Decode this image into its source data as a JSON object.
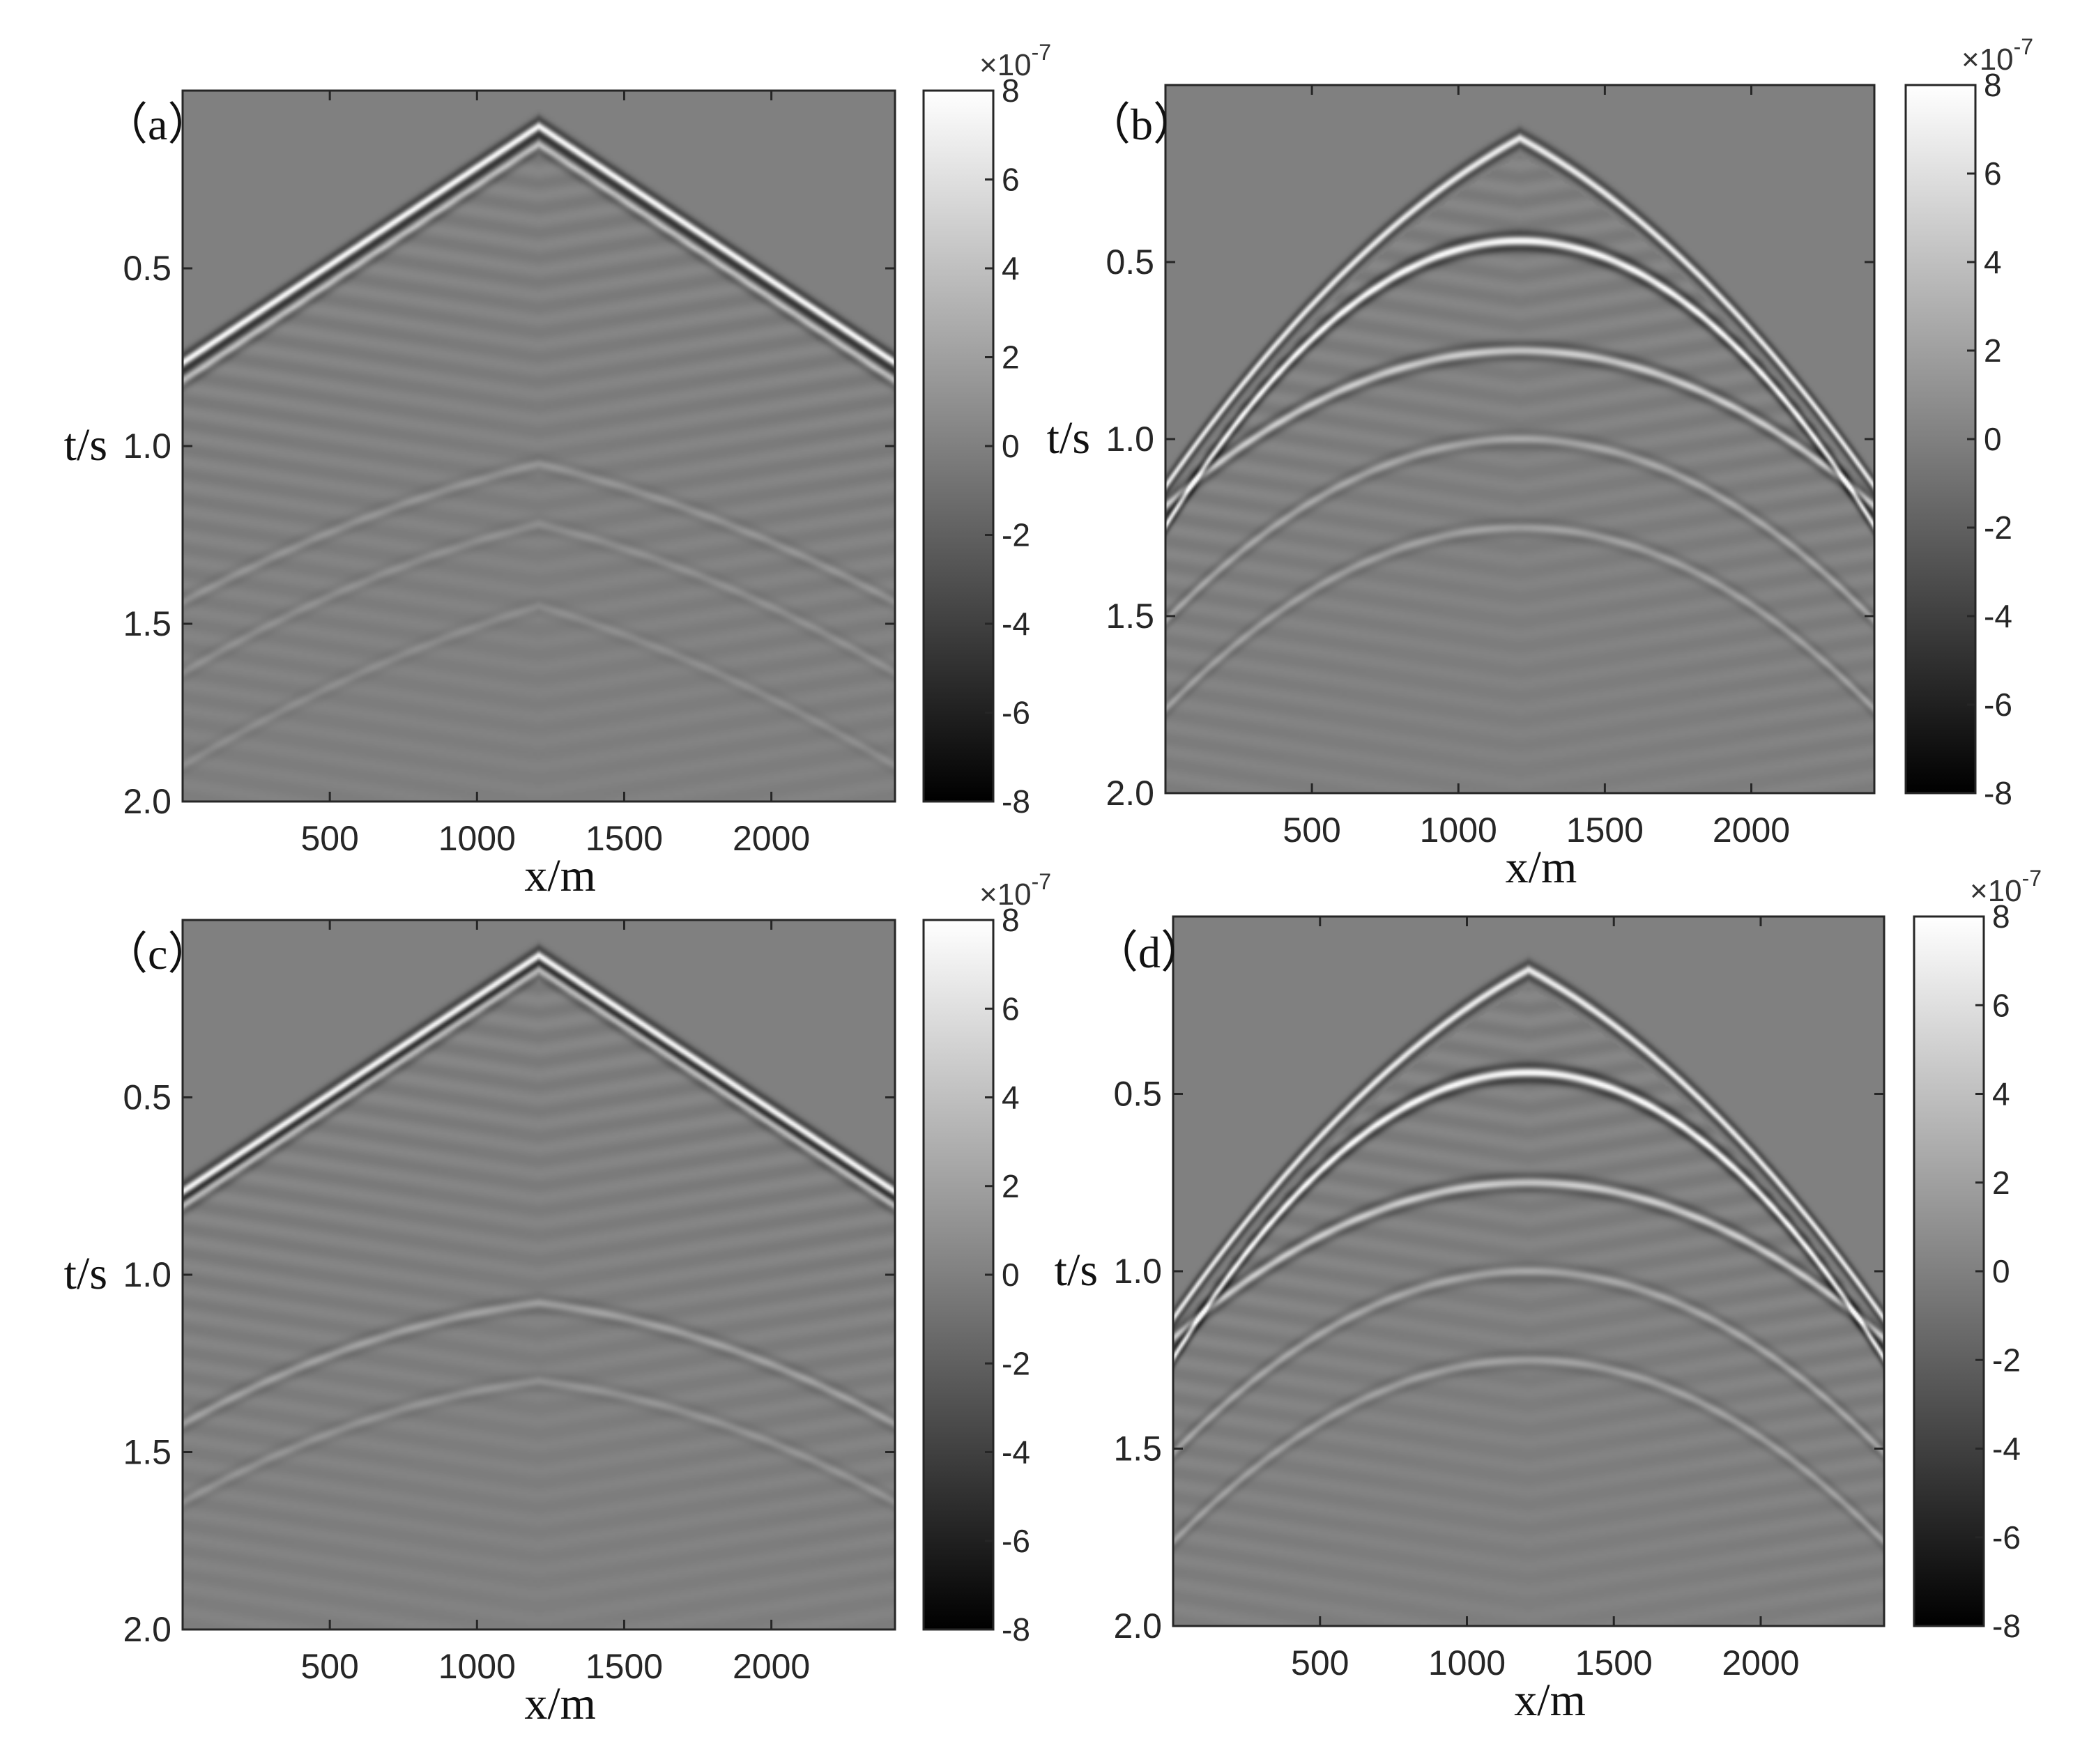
{
  "colormap": {
    "low": "#000000",
    "mid": "#808080",
    "high": "#ffffff"
  },
  "chart_data": [
    {
      "type": "heatmap",
      "panel_label": "（a）",
      "xlabel": "x/m",
      "ylabel": "t/s",
      "xlim": [
        0,
        2420
      ],
      "ylim": [
        2.0,
        0.0
      ],
      "yaxis_reversed": true,
      "xticks": [
        "500",
        "1000",
        "1500",
        "2000"
      ],
      "yticks": [
        "0.5",
        "1.0",
        "1.5",
        "2.0"
      ],
      "colorbar": {
        "min": -8,
        "max": 8,
        "ticks": [
          "8",
          "6",
          "4",
          "2",
          "0",
          "-2",
          "-4",
          "-6",
          "-8"
        ],
        "exponent": "-7"
      },
      "source_x": 1210,
      "events": [
        {
          "apex_t": 0.1,
          "slope": 0.00055,
          "curvature": 0,
          "amp": 1.0
        },
        {
          "apex_t": 0.15,
          "slope": 0.00055,
          "curvature": 0,
          "amp": 0.5
        },
        {
          "apex_t": 1.05,
          "slope": 0.0002,
          "curvature": 0.1,
          "amp": 0.15
        },
        {
          "apex_t": 1.22,
          "slope": 0.0002,
          "curvature": 0.12,
          "amp": 0.12
        },
        {
          "apex_t": 1.45,
          "slope": 0.00025,
          "curvature": 0.1,
          "amp": 0.1
        }
      ]
    },
    {
      "type": "heatmap",
      "panel_label": "（b）",
      "xlabel": "x/m",
      "ylabel": "t/s",
      "xlim": [
        0,
        2420
      ],
      "ylim": [
        2.0,
        0.0
      ],
      "yaxis_reversed": true,
      "xticks": [
        "500",
        "1000",
        "1500",
        "2000"
      ],
      "yticks": [
        "0.5",
        "1.0",
        "1.5",
        "2.0"
      ],
      "colorbar": {
        "min": -8,
        "max": 8,
        "ticks": [
          "8",
          "6",
          "4",
          "2",
          "0",
          "-2",
          "-4",
          "-6",
          "-8"
        ],
        "exponent": "-7"
      },
      "source_x": 1210,
      "events": [
        {
          "apex_t": 0.15,
          "slope": 0.00045,
          "curvature": 0.3,
          "amp": 0.9
        },
        {
          "apex_t": 0.44,
          "slope": 0.0,
          "curvature": 0.55,
          "amp": 1.0
        },
        {
          "apex_t": 0.75,
          "slope": 0.0,
          "curvature": 0.3,
          "amp": 0.6
        },
        {
          "apex_t": 1.0,
          "slope": 0.0,
          "curvature": 0.35,
          "amp": 0.3
        },
        {
          "apex_t": 1.25,
          "slope": 0.0,
          "curvature": 0.35,
          "amp": 0.25
        }
      ]
    },
    {
      "type": "heatmap",
      "panel_label": "（c）",
      "xlabel": "x/m",
      "ylabel": "t/s",
      "xlim": [
        0,
        2420
      ],
      "ylim": [
        2.0,
        0.0
      ],
      "yaxis_reversed": true,
      "xticks": [
        "500",
        "1000",
        "1500",
        "2000"
      ],
      "yticks": [
        "0.5",
        "1.0",
        "1.5",
        "2.0"
      ],
      "colorbar": {
        "min": -8,
        "max": 8,
        "ticks": [
          "8",
          "6",
          "4",
          "2",
          "0",
          "-2",
          "-4",
          "-6",
          "-8"
        ],
        "exponent": "-7"
      },
      "source_x": 1210,
      "events": [
        {
          "apex_t": 0.1,
          "slope": 0.00055,
          "curvature": 0,
          "amp": 1.0
        },
        {
          "apex_t": 0.14,
          "slope": 0.00055,
          "curvature": 0,
          "amp": 0.5
        },
        {
          "apex_t": 1.08,
          "slope": 0.0001,
          "curvature": 0.15,
          "amp": 0.25
        },
        {
          "apex_t": 1.3,
          "slope": 0.0001,
          "curvature": 0.15,
          "amp": 0.15
        }
      ]
    },
    {
      "type": "heatmap",
      "panel_label": "（d）",
      "xlabel": "x/m",
      "ylabel": "t/s",
      "xlim": [
        0,
        2420
      ],
      "ylim": [
        2.0,
        0.0
      ],
      "yaxis_reversed": true,
      "xticks": [
        "500",
        "1000",
        "1500",
        "2000"
      ],
      "yticks": [
        "0.5",
        "1.0",
        "1.5",
        "2.0"
      ],
      "colorbar": {
        "min": -8,
        "max": 8,
        "ticks": [
          "8",
          "6",
          "4",
          "2",
          "0",
          "-2",
          "-4",
          "-6",
          "-8"
        ],
        "exponent": "-7"
      },
      "source_x": 1210,
      "events": [
        {
          "apex_t": 0.15,
          "slope": 0.00045,
          "curvature": 0.3,
          "amp": 0.9
        },
        {
          "apex_t": 0.44,
          "slope": 0.0,
          "curvature": 0.55,
          "amp": 1.0
        },
        {
          "apex_t": 0.75,
          "slope": 0.0,
          "curvature": 0.3,
          "amp": 0.6
        },
        {
          "apex_t": 1.0,
          "slope": 0.0,
          "curvature": 0.35,
          "amp": 0.3
        },
        {
          "apex_t": 1.25,
          "slope": 0.0,
          "curvature": 0.35,
          "amp": 0.25
        }
      ]
    }
  ]
}
